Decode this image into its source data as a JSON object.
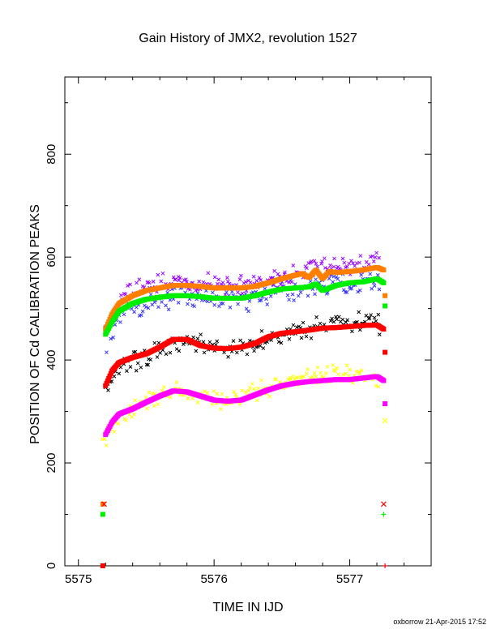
{
  "chart_data": {
    "type": "scatter",
    "title": "Gain History of JMX2, revolution 1527",
    "xlabel": "TIME IN IJD",
    "ylabel": "POSITION OF Cd CALIBRATION PEAKS",
    "xlim": [
      5574.9,
      5577.6
    ],
    "ylim": [
      0,
      950
    ],
    "x_ticks": [
      5575,
      5576,
      5577
    ],
    "x_tick_labels": [
      "5575",
      "5576",
      "5577"
    ],
    "y_ticks": [
      0,
      200,
      400,
      600,
      800
    ],
    "y_tick_labels": [
      "0",
      "200",
      "400",
      "600",
      "800"
    ],
    "grid": false,
    "colors": {
      "orange": "#ff7f00",
      "green": "#00ee00",
      "red": "#ff0000",
      "magenta": "#ff00ff",
      "blue": "#3333ff",
      "purple": "#9900ff",
      "black": "#000000",
      "yellow": "#ffff00"
    },
    "smooth_series": [
      {
        "color": "orange",
        "x": [
          5575.2,
          5575.25,
          5575.3,
          5575.4,
          5575.5,
          5575.6,
          5575.7,
          5575.8,
          5575.9,
          5576.0,
          5576.1,
          5576.2,
          5576.3,
          5576.4,
          5576.5,
          5576.6,
          5576.65,
          5576.7,
          5576.75,
          5576.8,
          5576.85,
          5576.9,
          5577.0,
          5577.1,
          5577.2,
          5577.25
        ],
        "y": [
          460,
          490,
          510,
          525,
          535,
          540,
          545,
          545,
          543,
          540,
          540,
          540,
          543,
          550,
          558,
          565,
          568,
          560,
          575,
          558,
          572,
          570,
          572,
          575,
          580,
          575
        ]
      },
      {
        "color": "green",
        "x": [
          5575.2,
          5575.25,
          5575.3,
          5575.4,
          5575.5,
          5575.6,
          5575.7,
          5575.8,
          5575.9,
          5576.0,
          5576.1,
          5576.2,
          5576.3,
          5576.4,
          5576.5,
          5576.6,
          5576.7,
          5576.75,
          5576.8,
          5576.9,
          5577.0,
          5577.1,
          5577.2,
          5577.25
        ],
        "y": [
          450,
          475,
          495,
          510,
          518,
          522,
          525,
          525,
          523,
          520,
          520,
          520,
          525,
          532,
          538,
          540,
          542,
          548,
          535,
          545,
          550,
          552,
          558,
          550
        ]
      },
      {
        "color": "red",
        "x": [
          5575.2,
          5575.25,
          5575.3,
          5575.4,
          5575.5,
          5575.6,
          5575.7,
          5575.8,
          5575.9,
          5576.0,
          5576.1,
          5576.2,
          5576.3,
          5576.4,
          5576.5,
          5576.6,
          5576.7,
          5576.8,
          5576.9,
          5577.0,
          5577.1,
          5577.2,
          5577.25
        ],
        "y": [
          350,
          380,
          395,
          405,
          412,
          425,
          440,
          440,
          428,
          423,
          422,
          425,
          432,
          445,
          452,
          455,
          458,
          462,
          463,
          465,
          467,
          468,
          460
        ]
      },
      {
        "color": "magenta",
        "x": [
          5575.2,
          5575.25,
          5575.3,
          5575.4,
          5575.5,
          5575.6,
          5575.7,
          5575.8,
          5575.9,
          5576.0,
          5576.1,
          5576.2,
          5576.3,
          5576.4,
          5576.5,
          5576.6,
          5576.7,
          5576.8,
          5576.9,
          5577.0,
          5577.1,
          5577.2,
          5577.25
        ],
        "y": [
          255,
          280,
          295,
          305,
          318,
          330,
          340,
          338,
          330,
          322,
          320,
          322,
          332,
          342,
          350,
          355,
          358,
          360,
          362,
          362,
          365,
          368,
          360
        ]
      }
    ],
    "scatter_series": [
      {
        "color": "blue",
        "x0": 5575.2,
        "x1": 5577.22,
        "base": [
          [
            5575.2,
            440
          ],
          [
            5575.3,
            480
          ],
          [
            5575.4,
            505
          ],
          [
            5575.6,
            520
          ],
          [
            5575.8,
            525
          ],
          [
            5576.0,
            520
          ],
          [
            5576.2,
            520
          ],
          [
            5576.4,
            530
          ],
          [
            5576.6,
            540
          ],
          [
            5576.8,
            545
          ],
          [
            5577.0,
            550
          ],
          [
            5577.22,
            555
          ]
        ],
        "spread": 30
      },
      {
        "color": "purple",
        "x0": 5575.3,
        "x1": 5577.22,
        "base": [
          [
            5575.3,
            520
          ],
          [
            5575.5,
            545
          ],
          [
            5575.8,
            550
          ],
          [
            5576.0,
            548
          ],
          [
            5576.2,
            545
          ],
          [
            5576.5,
            560
          ],
          [
            5576.7,
            580
          ],
          [
            5577.0,
            585
          ],
          [
            5577.22,
            590
          ]
        ],
        "spread": 25
      },
      {
        "color": "black",
        "x0": 5575.2,
        "x1": 5577.22,
        "base": [
          [
            5575.2,
            340
          ],
          [
            5575.3,
            385
          ],
          [
            5575.5,
            405
          ],
          [
            5575.7,
            430
          ],
          [
            5575.9,
            430
          ],
          [
            5576.1,
            420
          ],
          [
            5576.3,
            430
          ],
          [
            5576.5,
            455
          ],
          [
            5576.7,
            460
          ],
          [
            5576.9,
            470
          ],
          [
            5577.1,
            475
          ],
          [
            5577.22,
            470
          ]
        ],
        "spread": 22
      },
      {
        "color": "yellow",
        "x0": 5575.18,
        "x1": 5577.22,
        "base": [
          [
            5575.18,
            240
          ],
          [
            5575.3,
            290
          ],
          [
            5575.5,
            320
          ],
          [
            5575.7,
            345
          ],
          [
            5575.9,
            325
          ],
          [
            5576.1,
            315
          ],
          [
            5576.3,
            335
          ],
          [
            5576.5,
            360
          ],
          [
            5576.7,
            370
          ],
          [
            5576.9,
            375
          ],
          [
            5577.1,
            370
          ],
          [
            5577.22,
            365
          ]
        ],
        "spread": 22
      }
    ],
    "edge_markers": [
      {
        "x": 5575.18,
        "y": 120,
        "color": "orange",
        "shape": "square"
      },
      {
        "x": 5575.19,
        "y": 120,
        "color": "red",
        "shape": "x"
      },
      {
        "x": 5575.18,
        "y": 100,
        "color": "green",
        "shape": "square"
      },
      {
        "x": 5575.18,
        "y": 0,
        "color": "red",
        "shape": "square"
      },
      {
        "x": 5577.25,
        "y": 120,
        "color": "red",
        "shape": "x"
      },
      {
        "x": 5577.25,
        "y": 100,
        "color": "green",
        "shape": "plus"
      },
      {
        "x": 5577.26,
        "y": 0,
        "color": "red",
        "shape": "plus"
      },
      {
        "x": 5577.26,
        "y": 525,
        "color": "orange",
        "shape": "square"
      },
      {
        "x": 5577.26,
        "y": 505,
        "color": "green",
        "shape": "square"
      },
      {
        "x": 5577.26,
        "y": 415,
        "color": "red",
        "shape": "square"
      },
      {
        "x": 5577.26,
        "y": 315,
        "color": "magenta",
        "shape": "square"
      },
      {
        "x": 5577.26,
        "y": 282,
        "color": "yellow",
        "shape": "x"
      }
    ]
  },
  "footer": "oxborrow 21-Apr-2015 17:52"
}
